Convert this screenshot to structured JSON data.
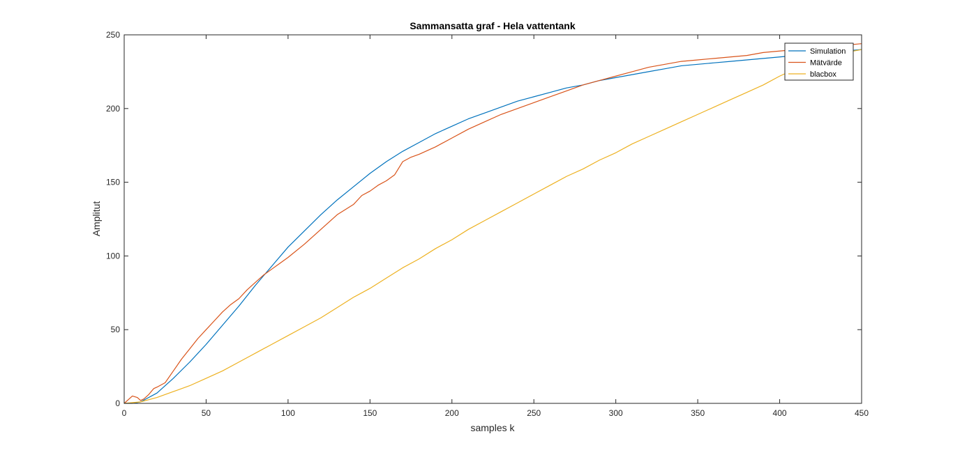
{
  "window": {
    "title": "Sammansatta graf - Hela vattentank"
  },
  "chart_data": {
    "type": "line",
    "title": "Sammansatta graf - Hela vattentank",
    "xlabel": "samples k",
    "ylabel": "Amplitut",
    "xlim": [
      0,
      450
    ],
    "ylim": [
      0,
      250
    ],
    "xticks": [
      0,
      50,
      100,
      150,
      200,
      250,
      300,
      350,
      400,
      450
    ],
    "yticks": [
      0,
      50,
      100,
      150,
      200,
      250
    ],
    "grid": false,
    "legend_position": "top-right",
    "series": [
      {
        "name": "Simulation",
        "color": "#0072bd",
        "x": [
          0,
          5,
          10,
          20,
          30,
          40,
          50,
          60,
          70,
          80,
          90,
          100,
          110,
          120,
          130,
          140,
          150,
          160,
          170,
          180,
          190,
          200,
          210,
          220,
          230,
          240,
          250,
          260,
          270,
          280,
          290,
          300,
          310,
          320,
          330,
          340,
          350,
          360,
          370,
          380,
          390,
          400,
          410,
          420,
          430,
          440,
          450
        ],
        "values": [
          0,
          0,
          1,
          7,
          17,
          28,
          40,
          53,
          66,
          80,
          93,
          106,
          117,
          128,
          138,
          147,
          156,
          164,
          171,
          177,
          183,
          188,
          193,
          197,
          201,
          205,
          208,
          211,
          214,
          216,
          219,
          221,
          223,
          225,
          227,
          229,
          230,
          231,
          232,
          233,
          234,
          235,
          236,
          237,
          238,
          239,
          240
        ]
      },
      {
        "name": "Mätvärde",
        "color": "#d95319",
        "x": [
          0,
          3,
          5,
          8,
          10,
          12,
          15,
          18,
          20,
          25,
          30,
          35,
          40,
          45,
          50,
          55,
          60,
          65,
          70,
          75,
          80,
          85,
          90,
          95,
          100,
          110,
          120,
          130,
          140,
          145,
          150,
          155,
          160,
          165,
          170,
          175,
          180,
          190,
          200,
          210,
          220,
          230,
          240,
          250,
          260,
          270,
          280,
          290,
          300,
          310,
          320,
          330,
          340,
          350,
          360,
          370,
          380,
          390,
          400,
          410,
          420,
          430,
          440,
          450
        ],
        "values": [
          0,
          3,
          5,
          4,
          2,
          3,
          6,
          10,
          11,
          14,
          22,
          30,
          37,
          44,
          50,
          56,
          62,
          67,
          71,
          77,
          82,
          87,
          91,
          95,
          99,
          108,
          118,
          128,
          135,
          141,
          144,
          148,
          151,
          155,
          164,
          167,
          169,
          174,
          180,
          186,
          191,
          196,
          200,
          204,
          208,
          212,
          216,
          219,
          222,
          225,
          228,
          230,
          232,
          233,
          234,
          235,
          236,
          238,
          239,
          240,
          241,
          242,
          243,
          244
        ]
      },
      {
        "name": "blacbox",
        "color": "#edb120",
        "x": [
          0,
          10,
          20,
          30,
          40,
          50,
          60,
          70,
          80,
          90,
          100,
          110,
          120,
          130,
          140,
          150,
          160,
          170,
          180,
          190,
          200,
          210,
          220,
          230,
          240,
          250,
          260,
          270,
          280,
          290,
          300,
          310,
          320,
          330,
          340,
          350,
          360,
          370,
          380,
          390,
          400,
          410,
          420,
          430,
          440,
          450
        ],
        "values": [
          0,
          1,
          4,
          8,
          12,
          17,
          22,
          28,
          34,
          40,
          46,
          52,
          58,
          65,
          72,
          78,
          85,
          92,
          98,
          105,
          111,
          118,
          124,
          130,
          136,
          142,
          148,
          154,
          159,
          165,
          170,
          176,
          181,
          186,
          191,
          196,
          201,
          206,
          211,
          216,
          222,
          227,
          231,
          235,
          238,
          240
        ]
      }
    ]
  }
}
